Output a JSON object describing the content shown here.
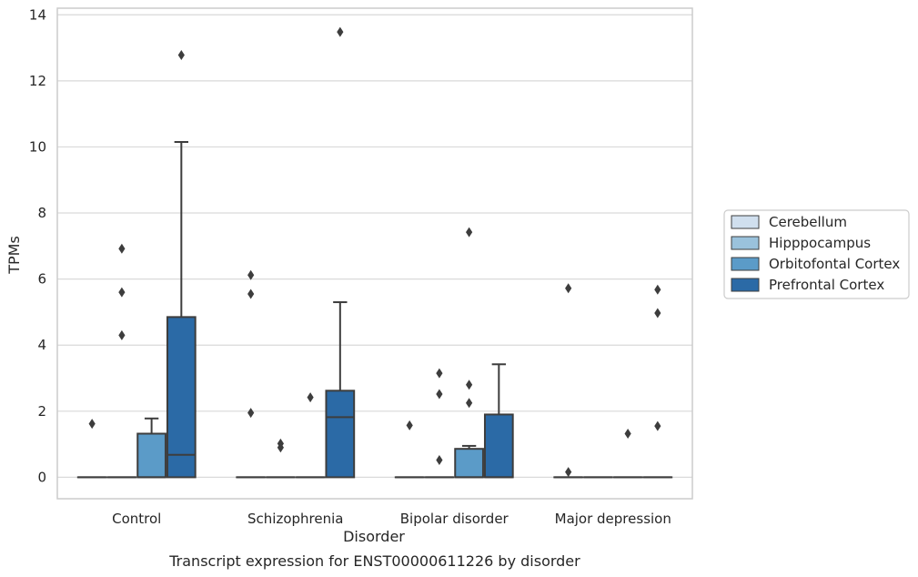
{
  "chart_data": {
    "type": "box",
    "caption": "Transcript expression for ENST00000611226 by disorder",
    "xlabel": "Disorder",
    "ylabel": "TPMs",
    "ylim": [
      -0.65,
      14.2
    ],
    "yticks": [
      0,
      2,
      4,
      6,
      8,
      10,
      12,
      14
    ],
    "grid": "horizontal",
    "legend_position": "right",
    "categories": [
      "Control",
      "Schizophrenia",
      "Bipolar disorder",
      "Major depression"
    ],
    "series": [
      {
        "name": "Cerebellum",
        "color": "#d0dfee",
        "boxes": [
          {
            "q1": 0,
            "median": 0,
            "q3": 0,
            "whisker_low": 0,
            "whisker_high": 0,
            "outliers": [
              1.62
            ]
          },
          {
            "q1": 0,
            "median": 0,
            "q3": 0,
            "whisker_low": 0,
            "whisker_high": 0,
            "outliers": [
              6.12,
              5.55,
              1.95
            ]
          },
          {
            "q1": 0,
            "median": 0,
            "q3": 0,
            "whisker_low": 0,
            "whisker_high": 0,
            "outliers": [
              1.57
            ]
          },
          {
            "q1": 0,
            "median": 0,
            "q3": 0,
            "whisker_low": 0,
            "whisker_high": 0,
            "outliers": [
              5.72,
              0.16
            ]
          }
        ]
      },
      {
        "name": "Hipppocampus",
        "color": "#9ac2dc",
        "boxes": [
          {
            "q1": 0,
            "median": 0,
            "q3": 0,
            "whisker_low": 0,
            "whisker_high": 0,
            "outliers": [
              6.92,
              5.6,
              4.3
            ]
          },
          {
            "q1": 0,
            "median": 0,
            "q3": 0,
            "whisker_low": 0,
            "whisker_high": 0,
            "outliers": [
              1.02,
              0.9
            ]
          },
          {
            "q1": 0,
            "median": 0,
            "q3": 0,
            "whisker_low": 0,
            "whisker_high": 0,
            "outliers": [
              3.15,
              2.52,
              0.52
            ]
          },
          {
            "q1": 0,
            "median": 0,
            "q3": 0,
            "whisker_low": 0,
            "whisker_high": 0,
            "outliers": []
          }
        ]
      },
      {
        "name": "Orbitofontal Cortex",
        "color": "#5b9bc8",
        "boxes": [
          {
            "q1": 0,
            "median": 0,
            "q3": 1.32,
            "whisker_low": 0,
            "whisker_high": 1.78,
            "outliers": []
          },
          {
            "q1": 0,
            "median": 0,
            "q3": 0,
            "whisker_low": 0,
            "whisker_high": 0,
            "outliers": [
              2.42
            ]
          },
          {
            "q1": 0,
            "median": 0,
            "q3": 0.86,
            "whisker_low": 0,
            "whisker_high": 0.95,
            "outliers": [
              7.42,
              2.8,
              2.25
            ]
          },
          {
            "q1": 0,
            "median": 0,
            "q3": 0,
            "whisker_low": 0,
            "whisker_high": 0,
            "outliers": [
              1.32
            ]
          }
        ]
      },
      {
        "name": "Prefrontal Cortex",
        "color": "#2b6aa6",
        "boxes": [
          {
            "q1": 0,
            "median": 0.68,
            "q3": 4.85,
            "whisker_low": 0,
            "whisker_high": 10.15,
            "outliers": [
              12.78
            ]
          },
          {
            "q1": 0,
            "median": 1.82,
            "q3": 2.62,
            "whisker_low": 0,
            "whisker_high": 5.3,
            "outliers": [
              13.48
            ]
          },
          {
            "q1": 0,
            "median": 0,
            "q3": 1.9,
            "whisker_low": 0,
            "whisker_high": 3.42,
            "outliers": []
          },
          {
            "q1": 0,
            "median": 0,
            "q3": 0,
            "whisker_low": 0,
            "whisker_high": 0,
            "outliers": [
              5.68,
              4.97,
              1.55
            ]
          }
        ]
      }
    ]
  }
}
